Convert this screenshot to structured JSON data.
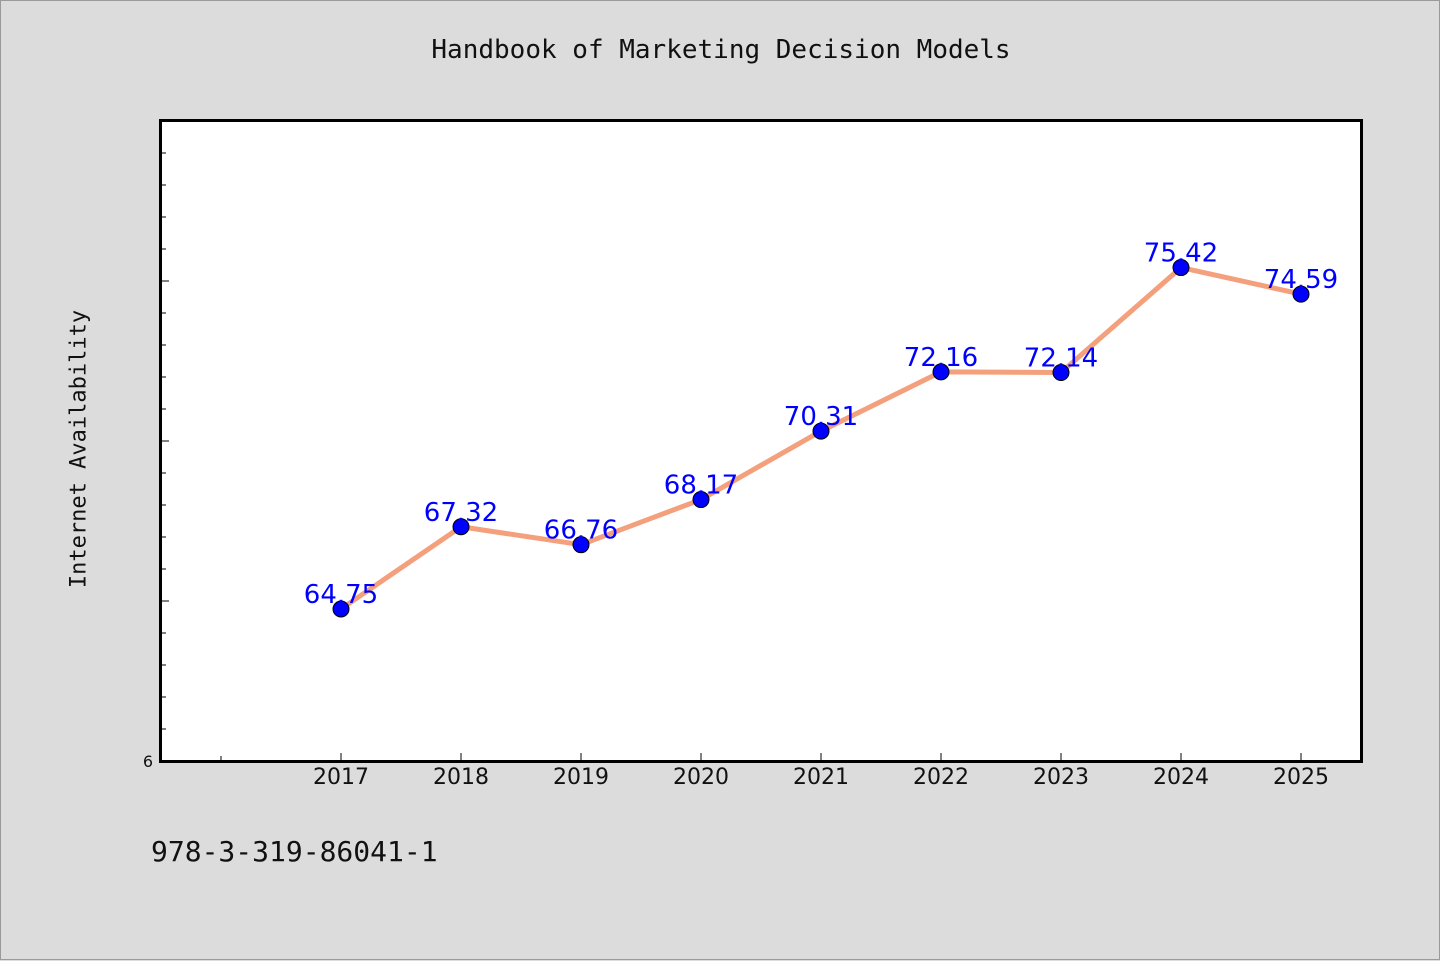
{
  "chart_data": {
    "type": "line",
    "title": "Handbook of Marketing Decision Models",
    "ylabel": "Internet Availability",
    "xlabel": "",
    "categories": [
      "2017",
      "2018",
      "2019",
      "2020",
      "2021",
      "2022",
      "2023",
      "2024",
      "2025"
    ],
    "series": [
      {
        "values": [
          64.75,
          67.32,
          66.76,
          68.17,
          70.31,
          72.16,
          72.14,
          75.42,
          74.59
        ],
        "labels": [
          "64.75",
          "67.32",
          "66.76",
          "68.17",
          "70.31",
          "72.16",
          "72.14",
          "75.42",
          "74.59"
        ],
        "line_color": "#f4a07c",
        "marker_color": "#0000ff"
      }
    ],
    "ylim": [
      60,
      80
    ],
    "ytick_labels": [
      "6"
    ],
    "grid": false,
    "legend": "none"
  },
  "footer": {
    "isbn": "978-3-319-86041-1"
  }
}
